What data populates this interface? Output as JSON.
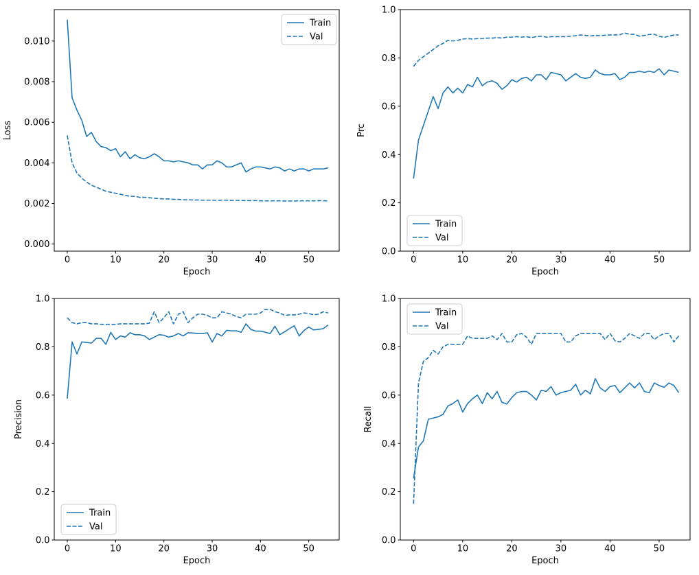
{
  "figure": {
    "background": "#ffffff",
    "series_color": "#1f77b4",
    "axis_color": "#000000",
    "legend_border_color": "#cccccc",
    "legend_background": "#ffffff"
  },
  "epochs": [
    0,
    1,
    2,
    3,
    4,
    5,
    6,
    7,
    8,
    9,
    10,
    11,
    12,
    13,
    14,
    15,
    16,
    17,
    18,
    19,
    20,
    21,
    22,
    23,
    24,
    25,
    26,
    27,
    28,
    29,
    30,
    31,
    32,
    33,
    34,
    35,
    36,
    37,
    38,
    39,
    40,
    41,
    42,
    43,
    44,
    45,
    46,
    47,
    48,
    49,
    50,
    51,
    52,
    53,
    54
  ],
  "chart_data": [
    {
      "id": "loss",
      "type": "line",
      "title": "",
      "xlabel": "Epoch",
      "ylabel": "Loss",
      "xlim": [
        -2.7,
        56.3
      ],
      "ylim": [
        -0.00035,
        0.01155
      ],
      "grid": false,
      "xticks": {
        "values": [
          0,
          10,
          20,
          30,
          40,
          50
        ],
        "labels": [
          "0",
          "10",
          "20",
          "30",
          "40",
          "50"
        ]
      },
      "yticks": {
        "values": [
          0.0,
          0.002,
          0.004,
          0.006,
          0.008,
          0.01
        ],
        "labels": [
          "0.000",
          "0.002",
          "0.004",
          "0.006",
          "0.008",
          "0.010"
        ]
      },
      "legend_loc": "upper right",
      "series": [
        {
          "name": "Train",
          "line_style": "solid",
          "color": "#1f77b4",
          "values": [
            0.01105,
            0.0072,
            0.0066,
            0.0061,
            0.0053,
            0.0055,
            0.00505,
            0.0048,
            0.00475,
            0.0046,
            0.0047,
            0.0043,
            0.00455,
            0.0042,
            0.0044,
            0.00425,
            0.0042,
            0.0043,
            0.00445,
            0.0043,
            0.0041,
            0.0041,
            0.00405,
            0.0041,
            0.00405,
            0.004,
            0.0039,
            0.0039,
            0.0037,
            0.0039,
            0.0039,
            0.0041,
            0.004,
            0.0038,
            0.0038,
            0.0039,
            0.004,
            0.00355,
            0.0037,
            0.0038,
            0.0038,
            0.00375,
            0.0037,
            0.0038,
            0.00375,
            0.0036,
            0.0037,
            0.0036,
            0.0037,
            0.0037,
            0.0036,
            0.0037,
            0.0037,
            0.0037,
            0.00375
          ]
        },
        {
          "name": "Val",
          "line_style": "dashed",
          "color": "#1f77b4",
          "values": [
            0.00535,
            0.004,
            0.0035,
            0.00325,
            0.00305,
            0.0029,
            0.0028,
            0.0027,
            0.0026,
            0.00255,
            0.0025,
            0.00245,
            0.0024,
            0.00235,
            0.00235,
            0.0023,
            0.0023,
            0.00228,
            0.00226,
            0.00224,
            0.00222,
            0.00222,
            0.0022,
            0.0022,
            0.00218,
            0.00218,
            0.00217,
            0.00217,
            0.00216,
            0.00216,
            0.00216,
            0.00215,
            0.00216,
            0.00216,
            0.00215,
            0.00215,
            0.00215,
            0.00214,
            0.00214,
            0.00214,
            0.00213,
            0.00213,
            0.00213,
            0.00213,
            0.00213,
            0.00212,
            0.00212,
            0.00212,
            0.00213,
            0.00213,
            0.00213,
            0.00213,
            0.00214,
            0.00213,
            0.00213
          ]
        }
      ]
    },
    {
      "id": "prc",
      "type": "line",
      "title": "",
      "xlabel": "Epoch",
      "ylabel": "Prc",
      "xlim": [
        -2.7,
        56.3
      ],
      "ylim": [
        0.0,
        1.0
      ],
      "grid": false,
      "xticks": {
        "values": [
          0,
          10,
          20,
          30,
          40,
          50
        ],
        "labels": [
          "0",
          "10",
          "20",
          "30",
          "40",
          "50"
        ]
      },
      "yticks": {
        "values": [
          0.0,
          0.2,
          0.4,
          0.6,
          0.8,
          1.0
        ],
        "labels": [
          "0.0",
          "0.2",
          "0.4",
          "0.6",
          "0.8",
          "1.0"
        ]
      },
      "legend_loc": "lower left",
      "series": [
        {
          "name": "Train",
          "line_style": "solid",
          "color": "#1f77b4",
          "values": [
            0.3,
            0.46,
            0.52,
            0.58,
            0.64,
            0.59,
            0.655,
            0.68,
            0.655,
            0.675,
            0.655,
            0.69,
            0.68,
            0.72,
            0.685,
            0.7,
            0.705,
            0.695,
            0.67,
            0.685,
            0.71,
            0.7,
            0.715,
            0.72,
            0.705,
            0.73,
            0.73,
            0.71,
            0.74,
            0.735,
            0.73,
            0.705,
            0.72,
            0.735,
            0.72,
            0.715,
            0.72,
            0.75,
            0.735,
            0.73,
            0.73,
            0.735,
            0.71,
            0.72,
            0.74,
            0.74,
            0.745,
            0.74,
            0.745,
            0.74,
            0.755,
            0.73,
            0.75,
            0.745,
            0.74
          ]
        },
        {
          "name": "Val",
          "line_style": "dashed",
          "color": "#1f77b4",
          "values": [
            0.765,
            0.79,
            0.805,
            0.82,
            0.835,
            0.85,
            0.86,
            0.873,
            0.87,
            0.873,
            0.878,
            0.88,
            0.878,
            0.88,
            0.88,
            0.882,
            0.882,
            0.884,
            0.882,
            0.886,
            0.886,
            0.888,
            0.886,
            0.888,
            0.884,
            0.888,
            0.89,
            0.886,
            0.888,
            0.888,
            0.888,
            0.888,
            0.89,
            0.892,
            0.895,
            0.893,
            0.891,
            0.893,
            0.892,
            0.894,
            0.895,
            0.895,
            0.896,
            0.903,
            0.898,
            0.898,
            0.89,
            0.893,
            0.897,
            0.898,
            0.89,
            0.885,
            0.89,
            0.895,
            0.895
          ]
        }
      ]
    },
    {
      "id": "precision",
      "type": "line",
      "title": "",
      "xlabel": "Epoch",
      "ylabel": "Precision",
      "xlim": [
        -2.7,
        56.3
      ],
      "ylim": [
        0.0,
        1.0
      ],
      "grid": false,
      "xticks": {
        "values": [
          0,
          10,
          20,
          30,
          40,
          50
        ],
        "labels": [
          "0",
          "10",
          "20",
          "30",
          "40",
          "50"
        ]
      },
      "yticks": {
        "values": [
          0.0,
          0.2,
          0.4,
          0.6,
          0.8,
          1.0
        ],
        "labels": [
          "0.0",
          "0.2",
          "0.4",
          "0.6",
          "0.8",
          "1.0"
        ]
      },
      "legend_loc": "lower left",
      "series": [
        {
          "name": "Train",
          "line_style": "solid",
          "color": "#1f77b4",
          "values": [
            0.585,
            0.82,
            0.77,
            0.82,
            0.818,
            0.815,
            0.835,
            0.835,
            0.81,
            0.86,
            0.83,
            0.845,
            0.84,
            0.858,
            0.85,
            0.85,
            0.845,
            0.83,
            0.84,
            0.85,
            0.848,
            0.84,
            0.845,
            0.855,
            0.845,
            0.858,
            0.857,
            0.855,
            0.855,
            0.858,
            0.82,
            0.855,
            0.845,
            0.868,
            0.866,
            0.866,
            0.86,
            0.895,
            0.872,
            0.865,
            0.865,
            0.86,
            0.855,
            0.885,
            0.85,
            0.862,
            0.875,
            0.887,
            0.845,
            0.867,
            0.882,
            0.87,
            0.872,
            0.875,
            0.89
          ]
        },
        {
          "name": "Val",
          "line_style": "dashed",
          "color": "#1f77b4",
          "values": [
            0.92,
            0.9,
            0.895,
            0.9,
            0.9,
            0.895,
            0.895,
            0.893,
            0.893,
            0.893,
            0.893,
            0.895,
            0.895,
            0.895,
            0.895,
            0.895,
            0.895,
            0.898,
            0.945,
            0.9,
            0.92,
            0.945,
            0.895,
            0.935,
            0.945,
            0.9,
            0.92,
            0.935,
            0.935,
            0.93,
            0.92,
            0.92,
            0.945,
            0.94,
            0.935,
            0.925,
            0.92,
            0.935,
            0.935,
            0.935,
            0.94,
            0.955,
            0.955,
            0.945,
            0.94,
            0.93,
            0.932,
            0.932,
            0.935,
            0.94,
            0.938,
            0.932,
            0.935,
            0.945,
            0.94
          ]
        }
      ]
    },
    {
      "id": "recall",
      "type": "line",
      "title": "",
      "xlabel": "Epoch",
      "ylabel": "Recall",
      "xlim": [
        -2.7,
        56.3
      ],
      "ylim": [
        0.0,
        1.0
      ],
      "grid": false,
      "xticks": {
        "values": [
          0,
          10,
          20,
          30,
          40,
          50
        ],
        "labels": [
          "0",
          "10",
          "20",
          "30",
          "40",
          "50"
        ]
      },
      "yticks": {
        "values": [
          0.0,
          0.2,
          0.4,
          0.6,
          0.8,
          1.0
        ],
        "labels": [
          "0.0",
          "0.2",
          "0.4",
          "0.6",
          "0.8",
          "1.0"
        ]
      },
      "legend_loc": "upper left",
      "series": [
        {
          "name": "Train",
          "line_style": "solid",
          "color": "#1f77b4",
          "values": [
            0.255,
            0.385,
            0.41,
            0.5,
            0.505,
            0.51,
            0.52,
            0.555,
            0.565,
            0.58,
            0.53,
            0.565,
            0.585,
            0.6,
            0.565,
            0.61,
            0.585,
            0.615,
            0.57,
            0.563,
            0.59,
            0.61,
            0.615,
            0.615,
            0.6,
            0.58,
            0.62,
            0.615,
            0.635,
            0.6,
            0.61,
            0.615,
            0.62,
            0.645,
            0.6,
            0.62,
            0.605,
            0.668,
            0.63,
            0.615,
            0.635,
            0.64,
            0.61,
            0.63,
            0.65,
            0.63,
            0.65,
            0.615,
            0.61,
            0.65,
            0.64,
            0.632,
            0.65,
            0.64,
            0.61
          ]
        },
        {
          "name": "Val",
          "line_style": "dashed",
          "color": "#1f77b4",
          "values": [
            0.15,
            0.65,
            0.74,
            0.755,
            0.785,
            0.77,
            0.8,
            0.81,
            0.81,
            0.81,
            0.81,
            0.845,
            0.835,
            0.835,
            0.835,
            0.835,
            0.845,
            0.83,
            0.855,
            0.82,
            0.82,
            0.85,
            0.855,
            0.84,
            0.81,
            0.855,
            0.855,
            0.855,
            0.855,
            0.855,
            0.855,
            0.82,
            0.82,
            0.845,
            0.855,
            0.855,
            0.855,
            0.855,
            0.855,
            0.83,
            0.855,
            0.825,
            0.82,
            0.835,
            0.855,
            0.845,
            0.835,
            0.855,
            0.855,
            0.83,
            0.845,
            0.855,
            0.855,
            0.82,
            0.845
          ]
        }
      ]
    }
  ]
}
